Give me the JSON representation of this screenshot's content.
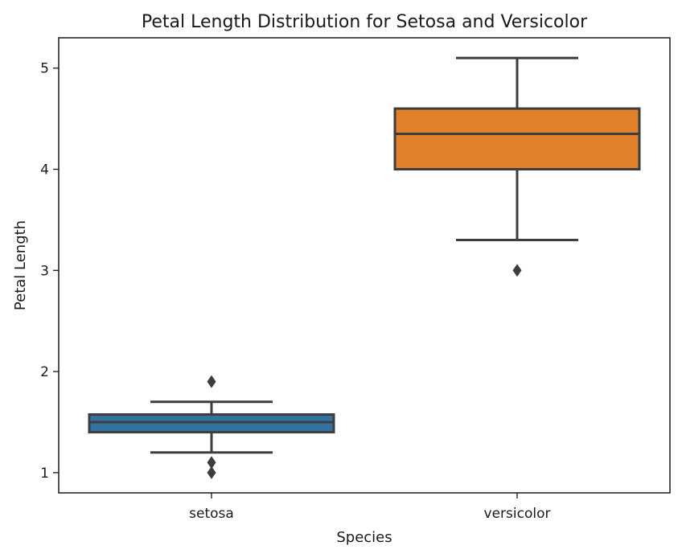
{
  "chart_data": {
    "type": "box",
    "title": "Petal Length Distribution for Setosa and Versicolor",
    "xlabel": "Species",
    "ylabel": "Petal Length",
    "ylim": [
      0.8,
      5.3
    ],
    "yticks": [
      1,
      2,
      3,
      4,
      5
    ],
    "grid": false,
    "categories": [
      "setosa",
      "versicolor"
    ],
    "series": [
      {
        "category": "setosa",
        "color": "#3274a1",
        "whisker_low": 1.2,
        "q1": 1.4,
        "median": 1.5,
        "q3": 1.575,
        "whisker_high": 1.7,
        "outliers": [
          1.0,
          1.1,
          1.9
        ]
      },
      {
        "category": "versicolor",
        "color": "#e1812c",
        "whisker_low": 3.3,
        "q1": 4.0,
        "median": 4.35,
        "q3": 4.6,
        "whisker_high": 5.1,
        "outliers": [
          3.0
        ]
      }
    ]
  }
}
